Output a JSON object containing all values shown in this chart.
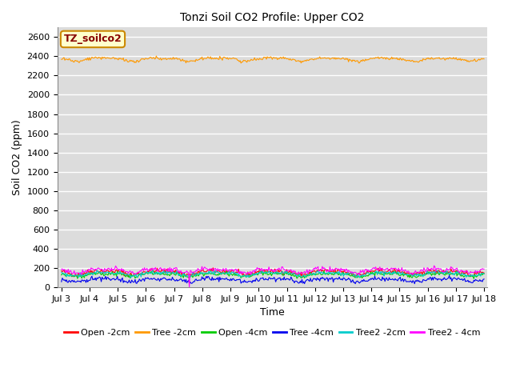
{
  "title": "Tonzi Soil CO2 Profile: Upper CO2",
  "xlabel": "Time",
  "ylabel": "Soil CO2 (ppm)",
  "ylim": [
    0,
    2700
  ],
  "yticks": [
    0,
    200,
    400,
    600,
    800,
    1000,
    1200,
    1400,
    1600,
    1800,
    2000,
    2200,
    2400,
    2600
  ],
  "x_start_day": 3,
  "x_end_day": 18,
  "x_tick_days": [
    3,
    4,
    5,
    6,
    7,
    8,
    9,
    10,
    11,
    12,
    13,
    14,
    15,
    16,
    17,
    18
  ],
  "spike_day": 7.55,
  "background_color": "#dcdcdc",
  "grid_color": "#ffffff",
  "legend_label": "TZ_soilco2",
  "legend_box_color": "#ffffcc",
  "legend_border_color": "#cc8800",
  "legend_text_color": "#880000",
  "series": [
    {
      "name": "Open_2cm",
      "color": "#ff0000",
      "base": 155,
      "amplitude": 18,
      "freq": 1.0,
      "noise": 12,
      "spike": false
    },
    {
      "name": "Tree_2cm",
      "color": "#ff9900",
      "base": 2370,
      "amplitude": 15,
      "freq": 1.0,
      "noise": 8,
      "spike": false
    },
    {
      "name": "Open_4cm",
      "color": "#00cc00",
      "base": 130,
      "amplitude": 15,
      "freq": 1.0,
      "noise": 10,
      "spike": false
    },
    {
      "name": "Tree_4cm",
      "color": "#0000ee",
      "base": 75,
      "amplitude": 15,
      "freq": 1.0,
      "noise": 12,
      "spike": false
    },
    {
      "name": "Tree2_2cm",
      "color": "#00cccc",
      "base": 140,
      "amplitude": 15,
      "freq": 1.0,
      "noise": 10,
      "spike": false
    },
    {
      "name": "Tree2_4cm",
      "color": "#ff00ff",
      "base": 175,
      "amplitude": 18,
      "freq": 1.0,
      "noise": 12,
      "spike": true
    }
  ],
  "legend_entries": [
    {
      "label": "Open -2cm",
      "color": "#ff0000"
    },
    {
      "label": "Tree -2cm",
      "color": "#ff9900"
    },
    {
      "label": "Open -4cm",
      "color": "#00cc00"
    },
    {
      "label": "Tree -4cm",
      "color": "#0000ee"
    },
    {
      "label": "Tree2 -2cm",
      "color": "#00cccc"
    },
    {
      "label": "Tree2 - 4cm",
      "color": "#ff00ff"
    }
  ],
  "figsize": [
    6.4,
    4.8
  ],
  "dpi": 100,
  "n_points": 500
}
